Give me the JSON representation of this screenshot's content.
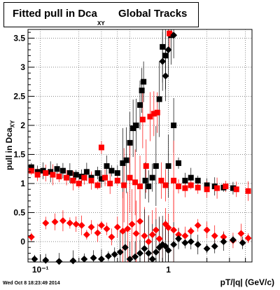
{
  "chart_data": {
    "type": "scatter",
    "title_main": "Fitted pull in Dca",
    "title_sub": "XY",
    "title_tail": "Global Tracks",
    "ylabel": "pull in Dca",
    "ylabel_sub": "XY",
    "xlabel": "pT/|q| (GeV/c)",
    "x_scale": "log",
    "xlim": [
      0.08,
      4.5
    ],
    "ylim": [
      -0.35,
      3.65
    ],
    "grid": true,
    "yticks": [
      0,
      0.5,
      1,
      1.5,
      2,
      2.5,
      3,
      3.5
    ],
    "ytick_labels": [
      "0",
      "0.5",
      "1",
      "1.5",
      "2",
      "2.5",
      "3",
      "3.5"
    ],
    "xtick_labels": [
      "10⁻¹",
      "1"
    ],
    "colors": {
      "black_series": "#000000",
      "red_series": "#ff0000"
    },
    "series": [
      {
        "color": "black",
        "marker": "square",
        "points": [
          [
            0.085,
            1.28
          ],
          [
            0.095,
            1.2
          ],
          [
            0.105,
            1.22
          ],
          [
            0.12,
            1.2
          ],
          [
            0.135,
            1.25
          ],
          [
            0.15,
            1.22
          ],
          [
            0.17,
            1.18
          ],
          [
            0.19,
            1.15
          ],
          [
            0.21,
            1.12
          ],
          [
            0.23,
            1.2
          ],
          [
            0.25,
            1.1
          ],
          [
            0.28,
            1.18
          ],
          [
            0.3,
            1.08
          ],
          [
            0.33,
            1.3
          ],
          [
            0.36,
            1.22
          ],
          [
            0.4,
            1.18
          ],
          [
            0.44,
            1.35
          ],
          [
            0.47,
            1.4
          ],
          [
            0.5,
            1.7
          ],
          [
            0.53,
            1.95
          ],
          [
            0.56,
            2.0
          ],
          [
            0.6,
            2.35
          ],
          [
            0.62,
            2.6
          ],
          [
            0.64,
            2.75
          ],
          [
            0.66,
            1.05
          ],
          [
            0.7,
            0.95
          ],
          [
            0.75,
            1.1
          ],
          [
            0.8,
            1.3
          ],
          [
            0.85,
            2.45
          ],
          [
            0.9,
            3.35
          ],
          [
            0.95,
            3.2
          ],
          [
            1.0,
            1.3
          ],
          [
            1.05,
            3.55
          ],
          [
            1.1,
            2.0
          ],
          [
            1.2,
            1.35
          ],
          [
            1.35,
            1.05
          ],
          [
            1.5,
            1.1
          ],
          [
            1.7,
            1.05
          ],
          [
            2.0,
            0.97
          ],
          [
            2.3,
            0.95
          ],
          [
            2.7,
            0.93
          ],
          [
            3.2,
            0.92
          ]
        ]
      },
      {
        "color": "red",
        "marker": "square",
        "points": [
          [
            0.085,
            1.22
          ],
          [
            0.095,
            1.15
          ],
          [
            0.11,
            1.18
          ],
          [
            0.125,
            1.15
          ],
          [
            0.14,
            1.12
          ],
          [
            0.16,
            1.1
          ],
          [
            0.18,
            1.05
          ],
          [
            0.2,
            1.0
          ],
          [
            0.22,
            1.1
          ],
          [
            0.25,
            1.05
          ],
          [
            0.28,
            0.97
          ],
          [
            0.3,
            1.62
          ],
          [
            0.32,
            1.1
          ],
          [
            0.35,
            1.0
          ],
          [
            0.4,
            1.05
          ],
          [
            0.45,
            0.97
          ],
          [
            0.5,
            1.1
          ],
          [
            0.55,
            1.02
          ],
          [
            0.6,
            0.95
          ],
          [
            0.63,
            2.1
          ],
          [
            0.67,
            1.3
          ],
          [
            0.72,
            2.15
          ],
          [
            0.77,
            2.2
          ],
          [
            0.82,
            2.22
          ],
          [
            0.88,
            1.05
          ],
          [
            0.95,
            0.97
          ],
          [
            1.02,
            3.58
          ],
          [
            1.1,
            1.05
          ],
          [
            1.2,
            0.95
          ],
          [
            1.35,
            0.92
          ],
          [
            1.5,
            0.97
          ],
          [
            1.7,
            0.93
          ],
          [
            2.0,
            0.9
          ],
          [
            2.4,
            0.92
          ],
          [
            2.8,
            0.95
          ],
          [
            3.4,
            0.9
          ],
          [
            4.2,
            0.87
          ]
        ]
      },
      {
        "color": "red",
        "marker": "diamond",
        "points": [
          [
            0.085,
            0.08
          ],
          [
            0.11,
            0.32
          ],
          [
            0.13,
            0.34
          ],
          [
            0.15,
            0.36
          ],
          [
            0.17,
            0.32
          ],
          [
            0.19,
            0.3
          ],
          [
            0.21,
            0.28
          ],
          [
            0.23,
            0.12
          ],
          [
            0.25,
            0.25
          ],
          [
            0.28,
            0.15
          ],
          [
            0.3,
            0.28
          ],
          [
            0.33,
            0.22
          ],
          [
            0.36,
            0.08
          ],
          [
            0.4,
            0.25
          ],
          [
            0.44,
            0.18
          ],
          [
            0.48,
            0.22
          ],
          [
            0.52,
            0.3
          ],
          [
            0.56,
            0.14
          ],
          [
            0.6,
            0.35
          ],
          [
            0.65,
            0.1
          ],
          [
            0.7,
            0.0
          ],
          [
            0.75,
            0.12
          ],
          [
            0.8,
            0.2
          ],
          [
            0.85,
            0.05
          ],
          [
            0.9,
            -0.05
          ],
          [
            0.95,
            0.3
          ],
          [
            1.0,
            0.24
          ],
          [
            1.1,
            0.2
          ],
          [
            1.2,
            0.12
          ],
          [
            1.35,
            0.1
          ],
          [
            1.5,
            0.18
          ],
          [
            1.7,
            0.28
          ],
          [
            2.0,
            0.2
          ],
          [
            2.3,
            0.1
          ],
          [
            2.7,
            0.08
          ],
          [
            3.2,
            0.02
          ],
          [
            3.7,
            0.14
          ],
          [
            4.2,
            0.06
          ]
        ]
      },
      {
        "color": "black",
        "marker": "diamond",
        "points": [
          [
            0.09,
            -0.3
          ],
          [
            0.11,
            -0.32
          ],
          [
            0.14,
            -0.34
          ],
          [
            0.18,
            -0.33
          ],
          [
            0.22,
            -0.3
          ],
          [
            0.26,
            -0.28
          ],
          [
            0.3,
            -0.3
          ],
          [
            0.34,
            -0.25
          ],
          [
            0.38,
            -0.22
          ],
          [
            0.42,
            -0.18
          ],
          [
            0.46,
            -0.1
          ],
          [
            0.5,
            -0.3
          ],
          [
            0.55,
            -0.26
          ],
          [
            0.6,
            -0.2
          ],
          [
            0.65,
            -0.12
          ],
          [
            0.7,
            -0.2
          ],
          [
            0.75,
            -0.3
          ],
          [
            0.8,
            -0.18
          ],
          [
            0.85,
            -0.1
          ],
          [
            0.9,
            -0.05
          ],
          [
            0.95,
            -0.08
          ],
          [
            1.0,
            -0.15
          ],
          [
            1.1,
            -0.05
          ],
          [
            1.2,
            0.05
          ],
          [
            1.35,
            -0.02
          ],
          [
            1.5,
            0.0
          ],
          [
            1.7,
            -0.05
          ],
          [
            2.0,
            -0.12
          ],
          [
            2.3,
            -0.08
          ],
          [
            2.7,
            0.0
          ],
          [
            3.2,
            0.03
          ],
          [
            3.8,
            -0.02
          ],
          [
            0.9,
            3.1
          ],
          [
            1.0,
            3.3
          ],
          [
            0.95,
            2.85
          ],
          [
            1.1,
            3.55
          ]
        ]
      }
    ]
  },
  "footer": {
    "datestamp": "Wed Oct  8 18:23:49 2014"
  }
}
